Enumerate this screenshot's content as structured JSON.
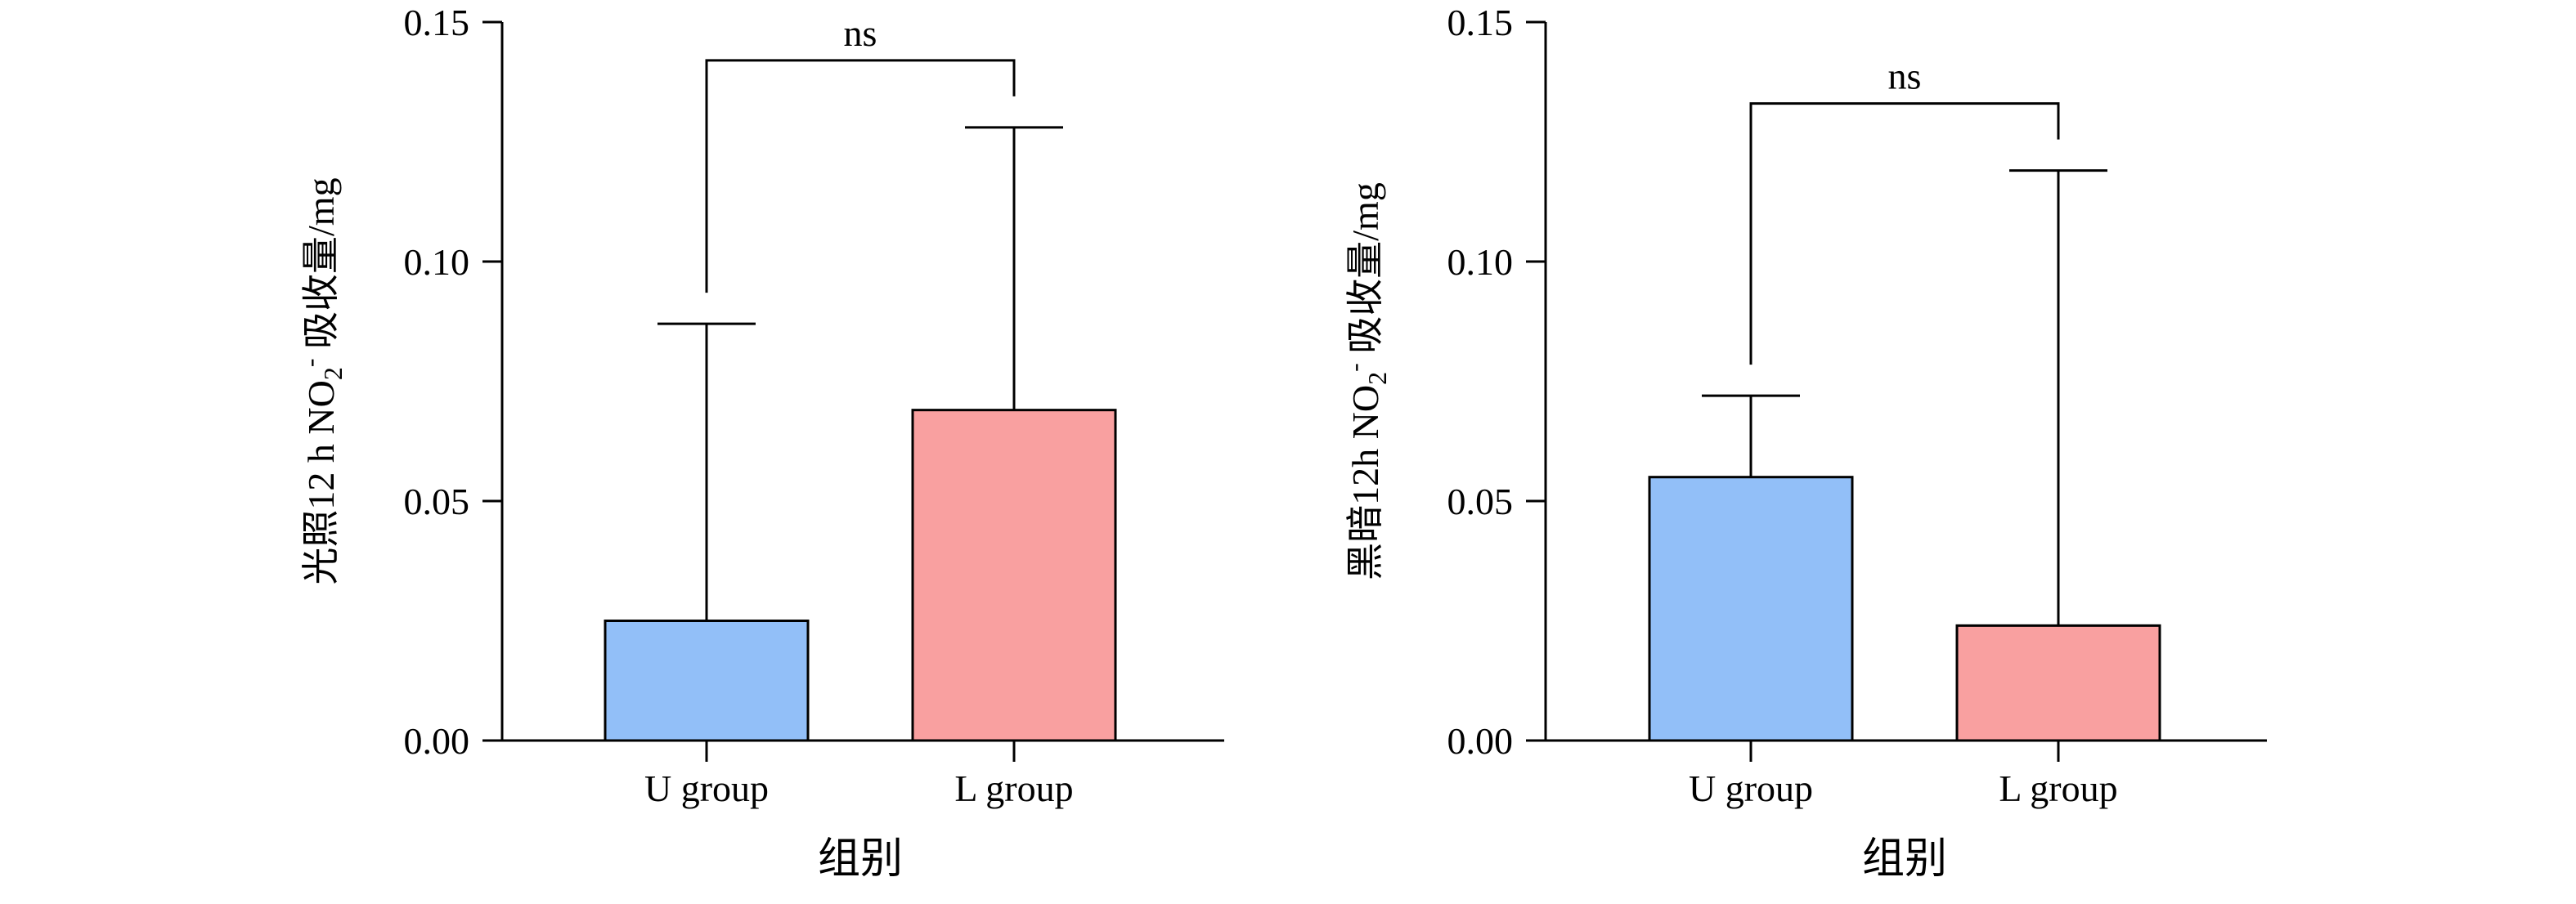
{
  "chart_data": [
    {
      "type": "bar",
      "ylabel_prefix": "光照12 h NO",
      "ylabel_sub": "2",
      "ylabel_sup": "-",
      "ylabel_suffix": " 吸收量/mg",
      "xlabel": "组别",
      "categories": [
        "U group",
        "L group"
      ],
      "values": [
        0.025,
        0.069
      ],
      "error_upper": [
        0.087,
        0.128
      ],
      "colors": [
        "#92bff8",
        "#f9a0a0"
      ],
      "ylim": [
        0,
        0.15
      ],
      "yticks": [
        "0.00",
        "0.05",
        "0.10",
        "0.15"
      ],
      "ytick_values": [
        0,
        0.05,
        0.1,
        0.15
      ],
      "significance": {
        "label": "ns",
        "between": [
          0,
          1
        ]
      }
    },
    {
      "type": "bar",
      "ylabel_prefix": "黑暗12h NO",
      "ylabel_sub": "2",
      "ylabel_sup": "-",
      "ylabel_suffix": " 吸收量/mg",
      "xlabel": "组别",
      "categories": [
        "U group",
        "L group"
      ],
      "values": [
        0.055,
        0.024
      ],
      "error_upper": [
        0.072,
        0.119
      ],
      "colors": [
        "#92bff8",
        "#f9a0a0"
      ],
      "ylim": [
        0,
        0.15
      ],
      "yticks": [
        "0.00",
        "0.05",
        "0.10",
        "0.15"
      ],
      "ytick_values": [
        0,
        0.05,
        0.1,
        0.15
      ],
      "significance": {
        "label": "ns",
        "between": [
          0,
          1
        ]
      }
    }
  ]
}
